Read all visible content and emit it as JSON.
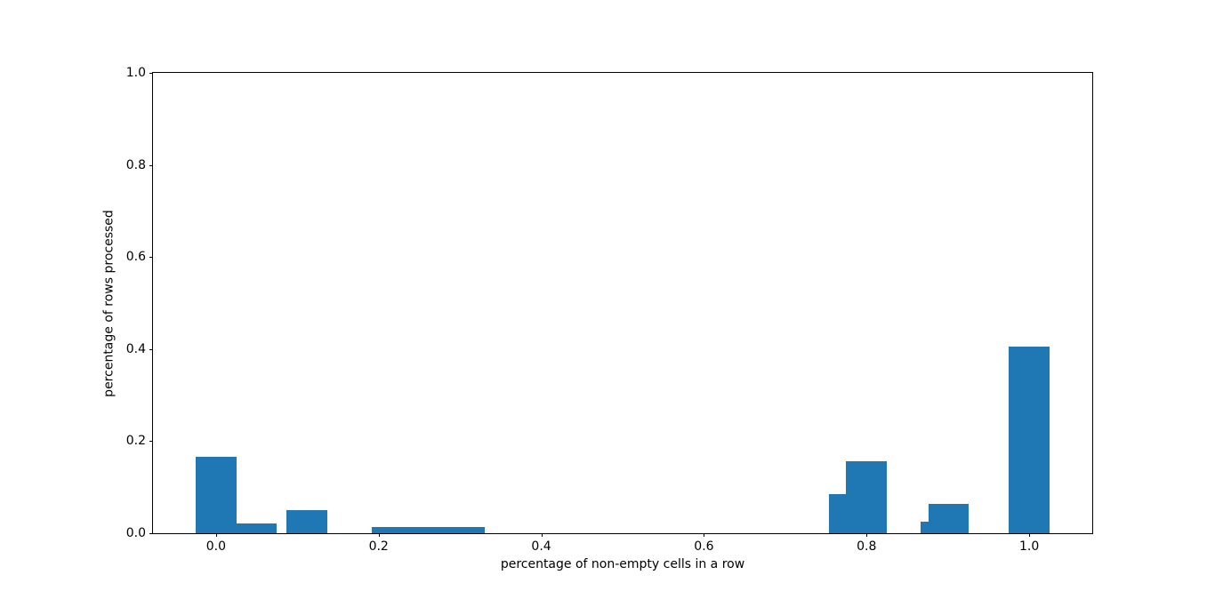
{
  "figure": {
    "background_color": "#ffffff",
    "spine_color": "#000000",
    "text_color": "#000000"
  },
  "chart_data": {
    "type": "bar",
    "title": "",
    "xlabel": "percentage of non-empty cells in a row",
    "ylabel": "percentage of rows processed",
    "xlim": [
      -0.0775,
      1.0775
    ],
    "ylim": [
      0,
      1.0
    ],
    "grid": false,
    "legend": null,
    "bar_color": "#1f77b4",
    "bar_width": 0.05,
    "x_ticks": [
      {
        "v": 0.0,
        "label": "0.0"
      },
      {
        "v": 0.2,
        "label": "0.2"
      },
      {
        "v": 0.4,
        "label": "0.4"
      },
      {
        "v": 0.6,
        "label": "0.6"
      },
      {
        "v": 0.8,
        "label": "0.8"
      },
      {
        "v": 1.0,
        "label": "1.0"
      }
    ],
    "y_ticks": [
      {
        "v": 0.0,
        "label": "0.0"
      },
      {
        "v": 0.2,
        "label": "0.2"
      },
      {
        "v": 0.4,
        "label": "0.4"
      },
      {
        "v": 0.6,
        "label": "0.6"
      },
      {
        "v": 0.8,
        "label": "0.8"
      },
      {
        "v": 1.0,
        "label": "1.0"
      }
    ],
    "bars": [
      {
        "x": 0.0,
        "height": 0.167
      },
      {
        "x": 0.05,
        "height": 0.022
      },
      {
        "x": 0.112,
        "height": 0.051
      },
      {
        "x": 0.217,
        "height": 0.013
      },
      {
        "x": 0.261,
        "height": 0.013
      },
      {
        "x": 0.305,
        "height": 0.013
      },
      {
        "x": 0.779,
        "height": 0.085
      },
      {
        "x": 0.8,
        "height": 0.156
      },
      {
        "x": 0.891,
        "height": 0.026
      },
      {
        "x": 0.901,
        "height": 0.063
      },
      {
        "x": 1.0,
        "height": 0.406
      }
    ]
  }
}
